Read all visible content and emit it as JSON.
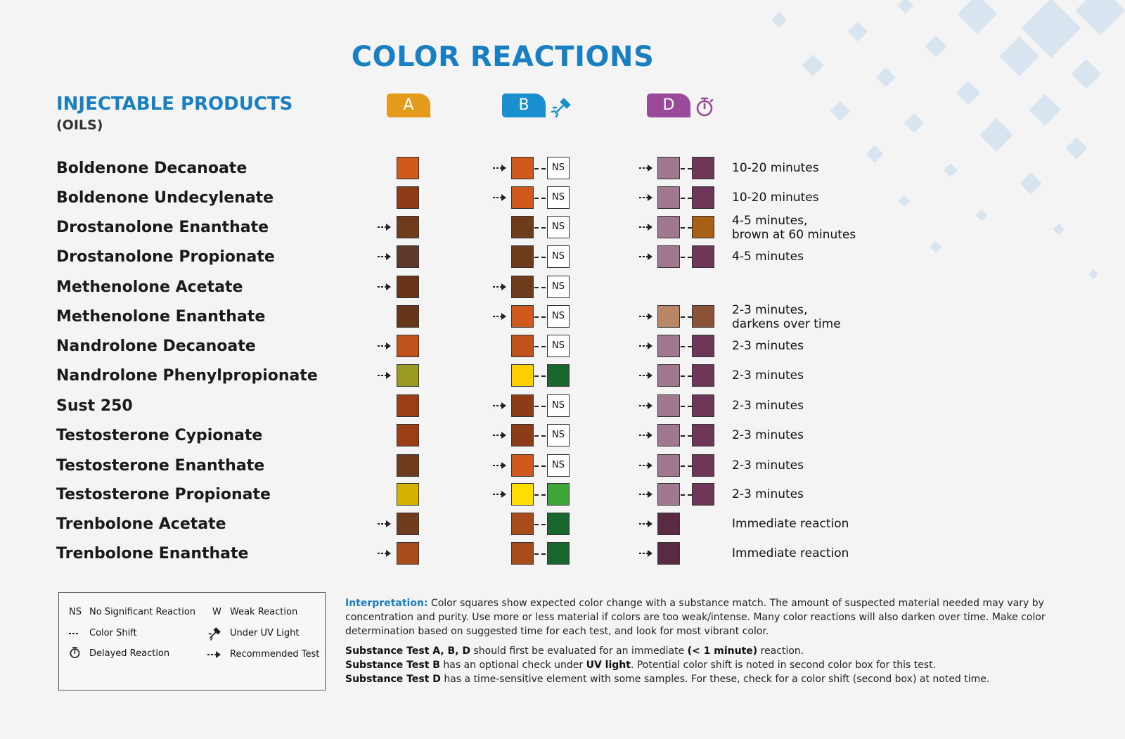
{
  "title": "COLOR REACTIONS",
  "section": {
    "title": "INJECTABLE PRODUCTS",
    "subtitle": "(OILS)"
  },
  "badges": {
    "a": "A",
    "b": "B",
    "d": "D"
  },
  "colors": {
    "title_blue": "#1a7fc0",
    "badge_a": "#e49a1a",
    "badge_b": "#1a8fd0",
    "badge_d": "#9b4a9a"
  },
  "rows": [
    {
      "name": "Boldenone Decanoate",
      "a": {
        "color": "#d05a1c",
        "rec": false
      },
      "b": {
        "c1": "#d05a1c",
        "c2": "NS",
        "rec": true
      },
      "d": {
        "c1": "#a07890",
        "c2": "#6e3658",
        "rec": true
      },
      "time": [
        "10-20 minutes"
      ]
    },
    {
      "name": "Boldenone Undecylenate",
      "a": {
        "color": "#8e3b18",
        "rec": false
      },
      "b": {
        "c1": "#d05a1c",
        "c2": "NS",
        "rec": true
      },
      "d": {
        "c1": "#a07890",
        "c2": "#6e3658",
        "rec": true
      },
      "time": [
        "10-20 minutes"
      ]
    },
    {
      "name": "Drostanolone Enanthate",
      "a": {
        "color": "#6e3c1c",
        "rec": true
      },
      "b": {
        "c1": "#6e3c1c",
        "c2": "NS",
        "rec": false
      },
      "d": {
        "c1": "#a07890",
        "c2": "#a85f16",
        "rec": true
      },
      "time": [
        "4-5 minutes,",
        "brown at 60 minutes"
      ]
    },
    {
      "name": "Drostanolone Propionate",
      "a": {
        "color": "#5e3828",
        "rec": true
      },
      "b": {
        "c1": "#6e3c1c",
        "c2": "NS",
        "rec": false
      },
      "d": {
        "c1": "#a07890",
        "c2": "#6e3658",
        "rec": true
      },
      "time": [
        "4-5 minutes"
      ]
    },
    {
      "name": "Methenolone Acetate",
      "a": {
        "color": "#6a3418",
        "rec": true
      },
      "b": {
        "c1": "#6e3c1c",
        "c2": "NS",
        "rec": true
      },
      "d": null,
      "time": []
    },
    {
      "name": "Methenolone Enanthate",
      "a": {
        "color": "#66361a",
        "rec": false
      },
      "b": {
        "c1": "#d05a1c",
        "c2": "NS",
        "rec": true
      },
      "d": {
        "c1": "#b98666",
        "c2": "#8a5338",
        "rec": true
      },
      "time": [
        "2-3 minutes,",
        "darkens over time"
      ]
    },
    {
      "name": "Nandrolone Decanoate",
      "a": {
        "color": "#c0531c",
        "rec": true
      },
      "b": {
        "c1": "#c0531c",
        "c2": "NS",
        "rec": false
      },
      "d": {
        "c1": "#a07890",
        "c2": "#6e3658",
        "rec": true
      },
      "time": [
        "2-3 minutes"
      ]
    },
    {
      "name": "Nandrolone Phenylpropionate",
      "a": {
        "color": "#9a9a22",
        "rec": true
      },
      "b": {
        "c1": "#ffd000",
        "c2": "#17672f",
        "rec": false
      },
      "d": {
        "c1": "#a07890",
        "c2": "#6e3658",
        "rec": true
      },
      "time": [
        "2-3 minutes"
      ]
    },
    {
      "name": "Sust 250",
      "a": {
        "color": "#9a3e16",
        "rec": false
      },
      "b": {
        "c1": "#8e3b18",
        "c2": "NS",
        "rec": true
      },
      "d": {
        "c1": "#a07890",
        "c2": "#6e3658",
        "rec": true
      },
      "time": [
        "2-3 minutes"
      ]
    },
    {
      "name": "Testosterone Cypionate",
      "a": {
        "color": "#9a3e16",
        "rec": false
      },
      "b": {
        "c1": "#8e3b18",
        "c2": "NS",
        "rec": true
      },
      "d": {
        "c1": "#a07890",
        "c2": "#6e3658",
        "rec": true
      },
      "time": [
        "2-3 minutes"
      ]
    },
    {
      "name": "Testosterone Enanthate",
      "a": {
        "color": "#6e3c1c",
        "rec": false
      },
      "b": {
        "c1": "#d05a1c",
        "c2": "NS",
        "rec": true
      },
      "d": {
        "c1": "#a07890",
        "c2": "#6e3658",
        "rec": true
      },
      "time": [
        "2-3 minutes"
      ]
    },
    {
      "name": "Testosterone Propionate",
      "a": {
        "color": "#d4b200",
        "rec": false
      },
      "b": {
        "c1": "#ffdd00",
        "c2": "#3ea638",
        "rec": true
      },
      "d": {
        "c1": "#a07890",
        "c2": "#6e3658",
        "rec": true
      },
      "time": [
        "2-3 minutes"
      ]
    },
    {
      "name": "Trenbolone Acetate",
      "a": {
        "color": "#6e3c1c",
        "rec": true
      },
      "b": {
        "c1": "#a84c1a",
        "c2": "#17672f",
        "rec": false
      },
      "d": {
        "c1": "#5a2a42",
        "c2": null,
        "rec": true
      },
      "time": [
        "Immediate reaction"
      ]
    },
    {
      "name": "Trenbolone Enanthate",
      "a": {
        "color": "#a84c1a",
        "rec": true
      },
      "b": {
        "c1": "#a84c1a",
        "c2": "#17672f",
        "rec": false
      },
      "d": {
        "c1": "#5a2a42",
        "c2": null,
        "rec": true
      },
      "time": [
        "Immediate reaction"
      ]
    }
  ],
  "legend": {
    "ns_symbol": "NS",
    "ns": "No Significant Reaction",
    "w_symbol": "W",
    "w": "Weak Reaction",
    "shift": "Color Shift",
    "uv": "Under UV Light",
    "delayed": "Delayed Reaction",
    "recommended": "Recommended Test"
  },
  "notes": {
    "interp_label": "Interpretation:",
    "interp_text": "Color squares show expected color change with a substance match. The amount of suspected material needed may vary by concentration and purity. Use more or less material if colors are too weak/intense. Many color reactions will also darken over time. Make color determination based on suggested time for each test, and look for most vibrant color.",
    "l1_bold": "Substance Test A, B, D",
    "l1_text1": " should first be evaluated for an immediate ",
    "l1_bold2": "(< 1 minute)",
    "l1_text2": " reaction.",
    "l2_bold": "Substance Test B",
    "l2_text1": " has an optional check under ",
    "l2_bold2": "UV light",
    "l2_text2": ". Potential color shift is noted in second color box for this test.",
    "l3_bold": "Substance Test D",
    "l3_text": " has a time-sensitive element with some samples. For these, check for a color shift (second box) at noted time."
  }
}
